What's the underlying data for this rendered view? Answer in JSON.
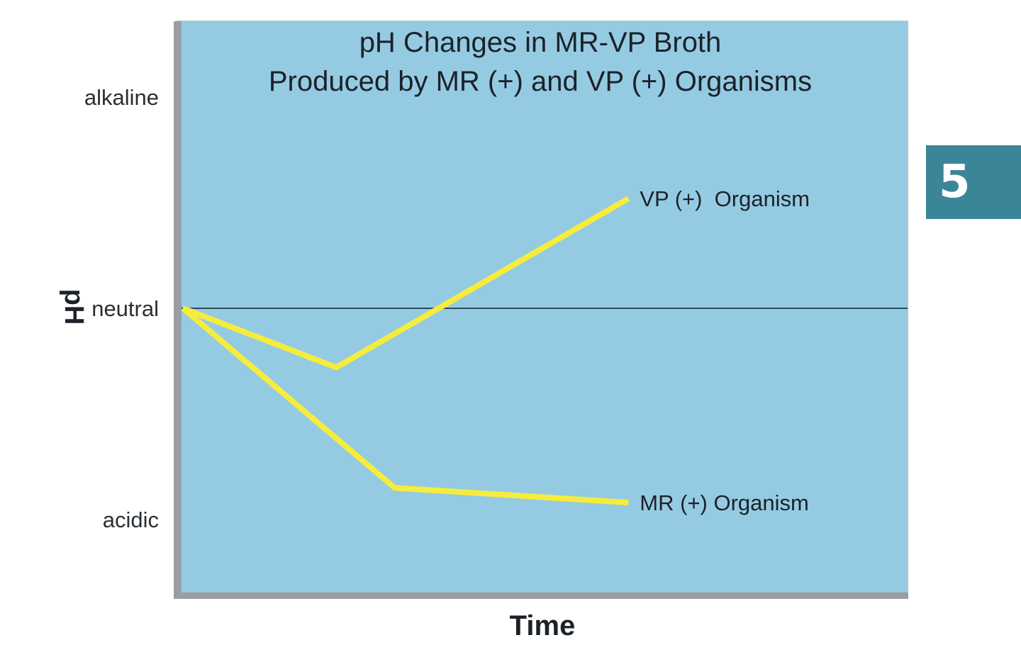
{
  "chart_data": {
    "type": "line",
    "title": [
      "pH Changes in MR-VP Broth",
      "Produced by MR (+) and VP (+) Organisms"
    ],
    "xlabel": "Time",
    "ylabel": "pH",
    "y_tick_labels": [
      {
        "label": "alkaline",
        "value": 1
      },
      {
        "label": "neutral",
        "value": 0
      },
      {
        "label": "acidic",
        "value": -1
      }
    ],
    "xlim": [
      0,
      1
    ],
    "ylim": [
      -1.35,
      1.35
    ],
    "reference_line": {
      "y": 0,
      "color": "#2f4a55"
    },
    "grid": false,
    "legend": "inline labels at line ends",
    "series": [
      {
        "name": "VP (+)  Organism",
        "x": [
          0,
          0.21,
          0.61
        ],
        "y": [
          0,
          -0.28,
          0.52
        ],
        "color": "#f6ec3c"
      },
      {
        "name": "MR (+) Organism",
        "x": [
          0,
          0.29,
          0.61
        ],
        "y": [
          0,
          -0.85,
          -0.92
        ],
        "color": "#f6ec3c"
      }
    ],
    "colors": {
      "plot_background": "#94cbe3",
      "axis": "#9a9ea3"
    }
  },
  "page_badge": {
    "label": "5",
    "color": "#3a8598"
  }
}
